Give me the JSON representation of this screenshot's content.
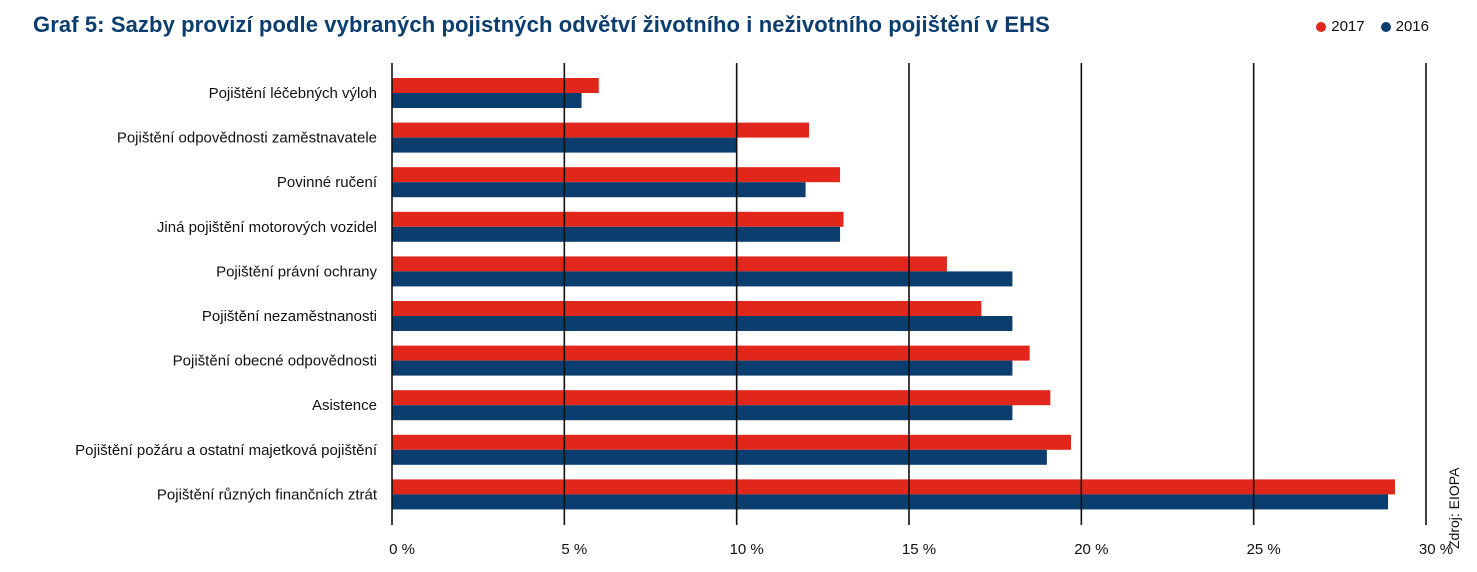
{
  "title": "Graf 5: Sazby provizí podle vybraných pojistných odvětví životního i neživotního pojištění v EHS",
  "source": "Zdroj: EIOPA",
  "chart_data": {
    "type": "bar",
    "orientation": "horizontal",
    "title": "Graf 5: Sazby provizí podle vybraných pojistných odvětví životního i neživotního pojištění v EHS",
    "categories": [
      "Pojištění léčebných výloh",
      "Pojištění odpovědnosti zaměstnavatele",
      "Povinné ručení",
      "Jiná pojištění motorových vozidel",
      "Pojištění právní ochrany",
      "Pojištění nezaměstnanosti",
      "Pojištění obecné odpovědnosti",
      "Asistence",
      "Pojištění požáru a ostatní majetková pojištění",
      "Pojištění různých finančních ztrát"
    ],
    "series": [
      {
        "name": "2017",
        "color": "#e1261c",
        "values": [
          6.0,
          12.1,
          13.0,
          13.1,
          16.1,
          17.1,
          18.5,
          19.1,
          19.7,
          29.1
        ]
      },
      {
        "name": "2016",
        "color": "#0b3d6e",
        "values": [
          5.5,
          10.0,
          12.0,
          13.0,
          18.0,
          18.0,
          18.0,
          18.0,
          19.0,
          28.9
        ]
      }
    ],
    "xlim": [
      0,
      30
    ],
    "xticks": [
      0,
      5,
      10,
      15,
      20,
      25,
      30
    ],
    "xtick_labels": [
      "0 %",
      "5 %",
      "10 %",
      "15 %",
      "20 %",
      "25 %",
      "30 %"
    ],
    "grid": true,
    "legend_position": "top-right"
  }
}
